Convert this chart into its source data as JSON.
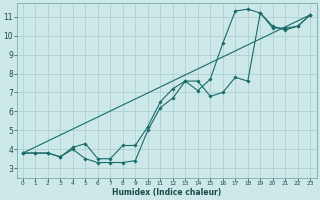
{
  "xlabel": "Humidex (Indice chaleur)",
  "bg_color": "#cce8e8",
  "grid_color": "#aacccc",
  "line_color": "#1a6b6b",
  "xlim": [
    -0.5,
    23.5
  ],
  "ylim": [
    2.5,
    11.7
  ],
  "xticks": [
    0,
    1,
    2,
    3,
    4,
    5,
    6,
    7,
    8,
    9,
    10,
    11,
    12,
    13,
    14,
    15,
    16,
    17,
    18,
    19,
    20,
    21,
    22,
    23
  ],
  "yticks": [
    3,
    4,
    5,
    6,
    7,
    8,
    9,
    10,
    11
  ],
  "line1_x": [
    0,
    1,
    2,
    3,
    4,
    5,
    6,
    7,
    8,
    9,
    10,
    11,
    12,
    13,
    14,
    15,
    16,
    17,
    18,
    19,
    20,
    21,
    22,
    23
  ],
  "line1_y": [
    3.8,
    3.8,
    3.8,
    3.6,
    4.0,
    3.5,
    3.3,
    3.3,
    3.3,
    3.4,
    5.0,
    6.2,
    6.7,
    7.6,
    7.1,
    7.7,
    9.6,
    11.3,
    11.4,
    11.2,
    10.5,
    10.3,
    10.5,
    11.1
  ],
  "line2_x": [
    0,
    1,
    2,
    3,
    4,
    5,
    6,
    7,
    8,
    9,
    10,
    11,
    12,
    13,
    14,
    15,
    16,
    17,
    18,
    19,
    20,
    21,
    22,
    23
  ],
  "line2_y": [
    3.8,
    3.8,
    3.8,
    3.6,
    4.1,
    4.3,
    3.5,
    3.5,
    4.2,
    4.2,
    5.2,
    6.5,
    7.2,
    7.6,
    7.6,
    6.8,
    7.0,
    7.8,
    7.6,
    11.2,
    10.4,
    10.4,
    10.5,
    11.1
  ],
  "line3_x": [
    0,
    23
  ],
  "line3_y": [
    3.8,
    11.1
  ]
}
